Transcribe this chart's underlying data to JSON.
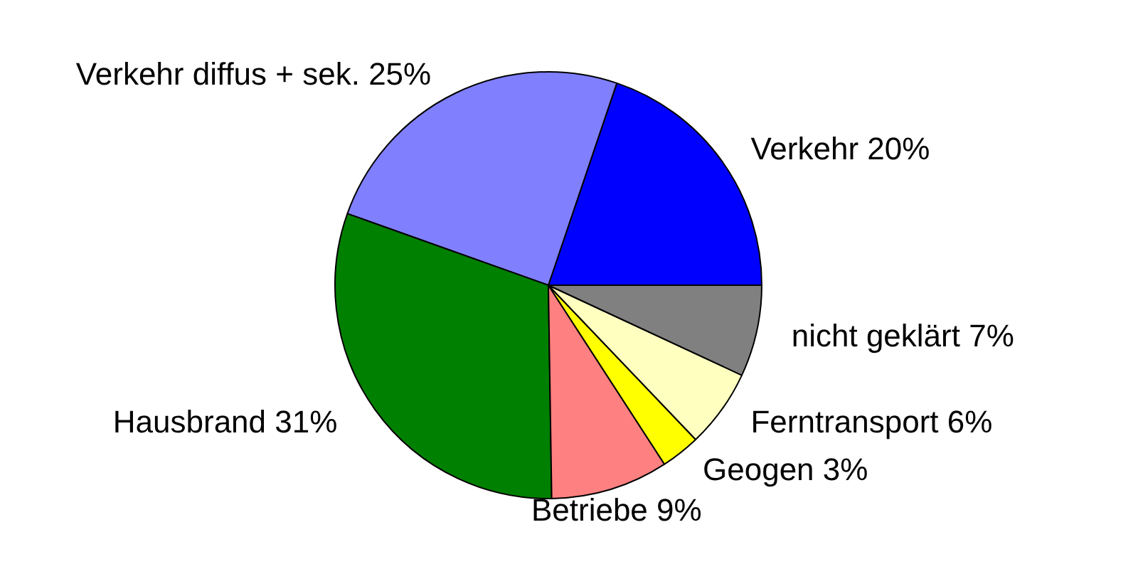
{
  "chart_data": {
    "type": "pie",
    "categories": [
      "Verkehr",
      "Verkehr diffus + sek.",
      "Hausbrand",
      "Betriebe",
      "Geogen",
      "Ferntransport",
      "nicht geklärt"
    ],
    "values": [
      20,
      25,
      31,
      9,
      3,
      6,
      7
    ],
    "value_labels": [
      "20%",
      "25%",
      "31%",
      "9%",
      "3%",
      "6%",
      "7%"
    ],
    "colors": [
      "#0000ff",
      "#8080ff",
      "#008000",
      "#ff8080",
      "#ffff00",
      "#ffffc0",
      "#808080"
    ],
    "legend": false
  }
}
